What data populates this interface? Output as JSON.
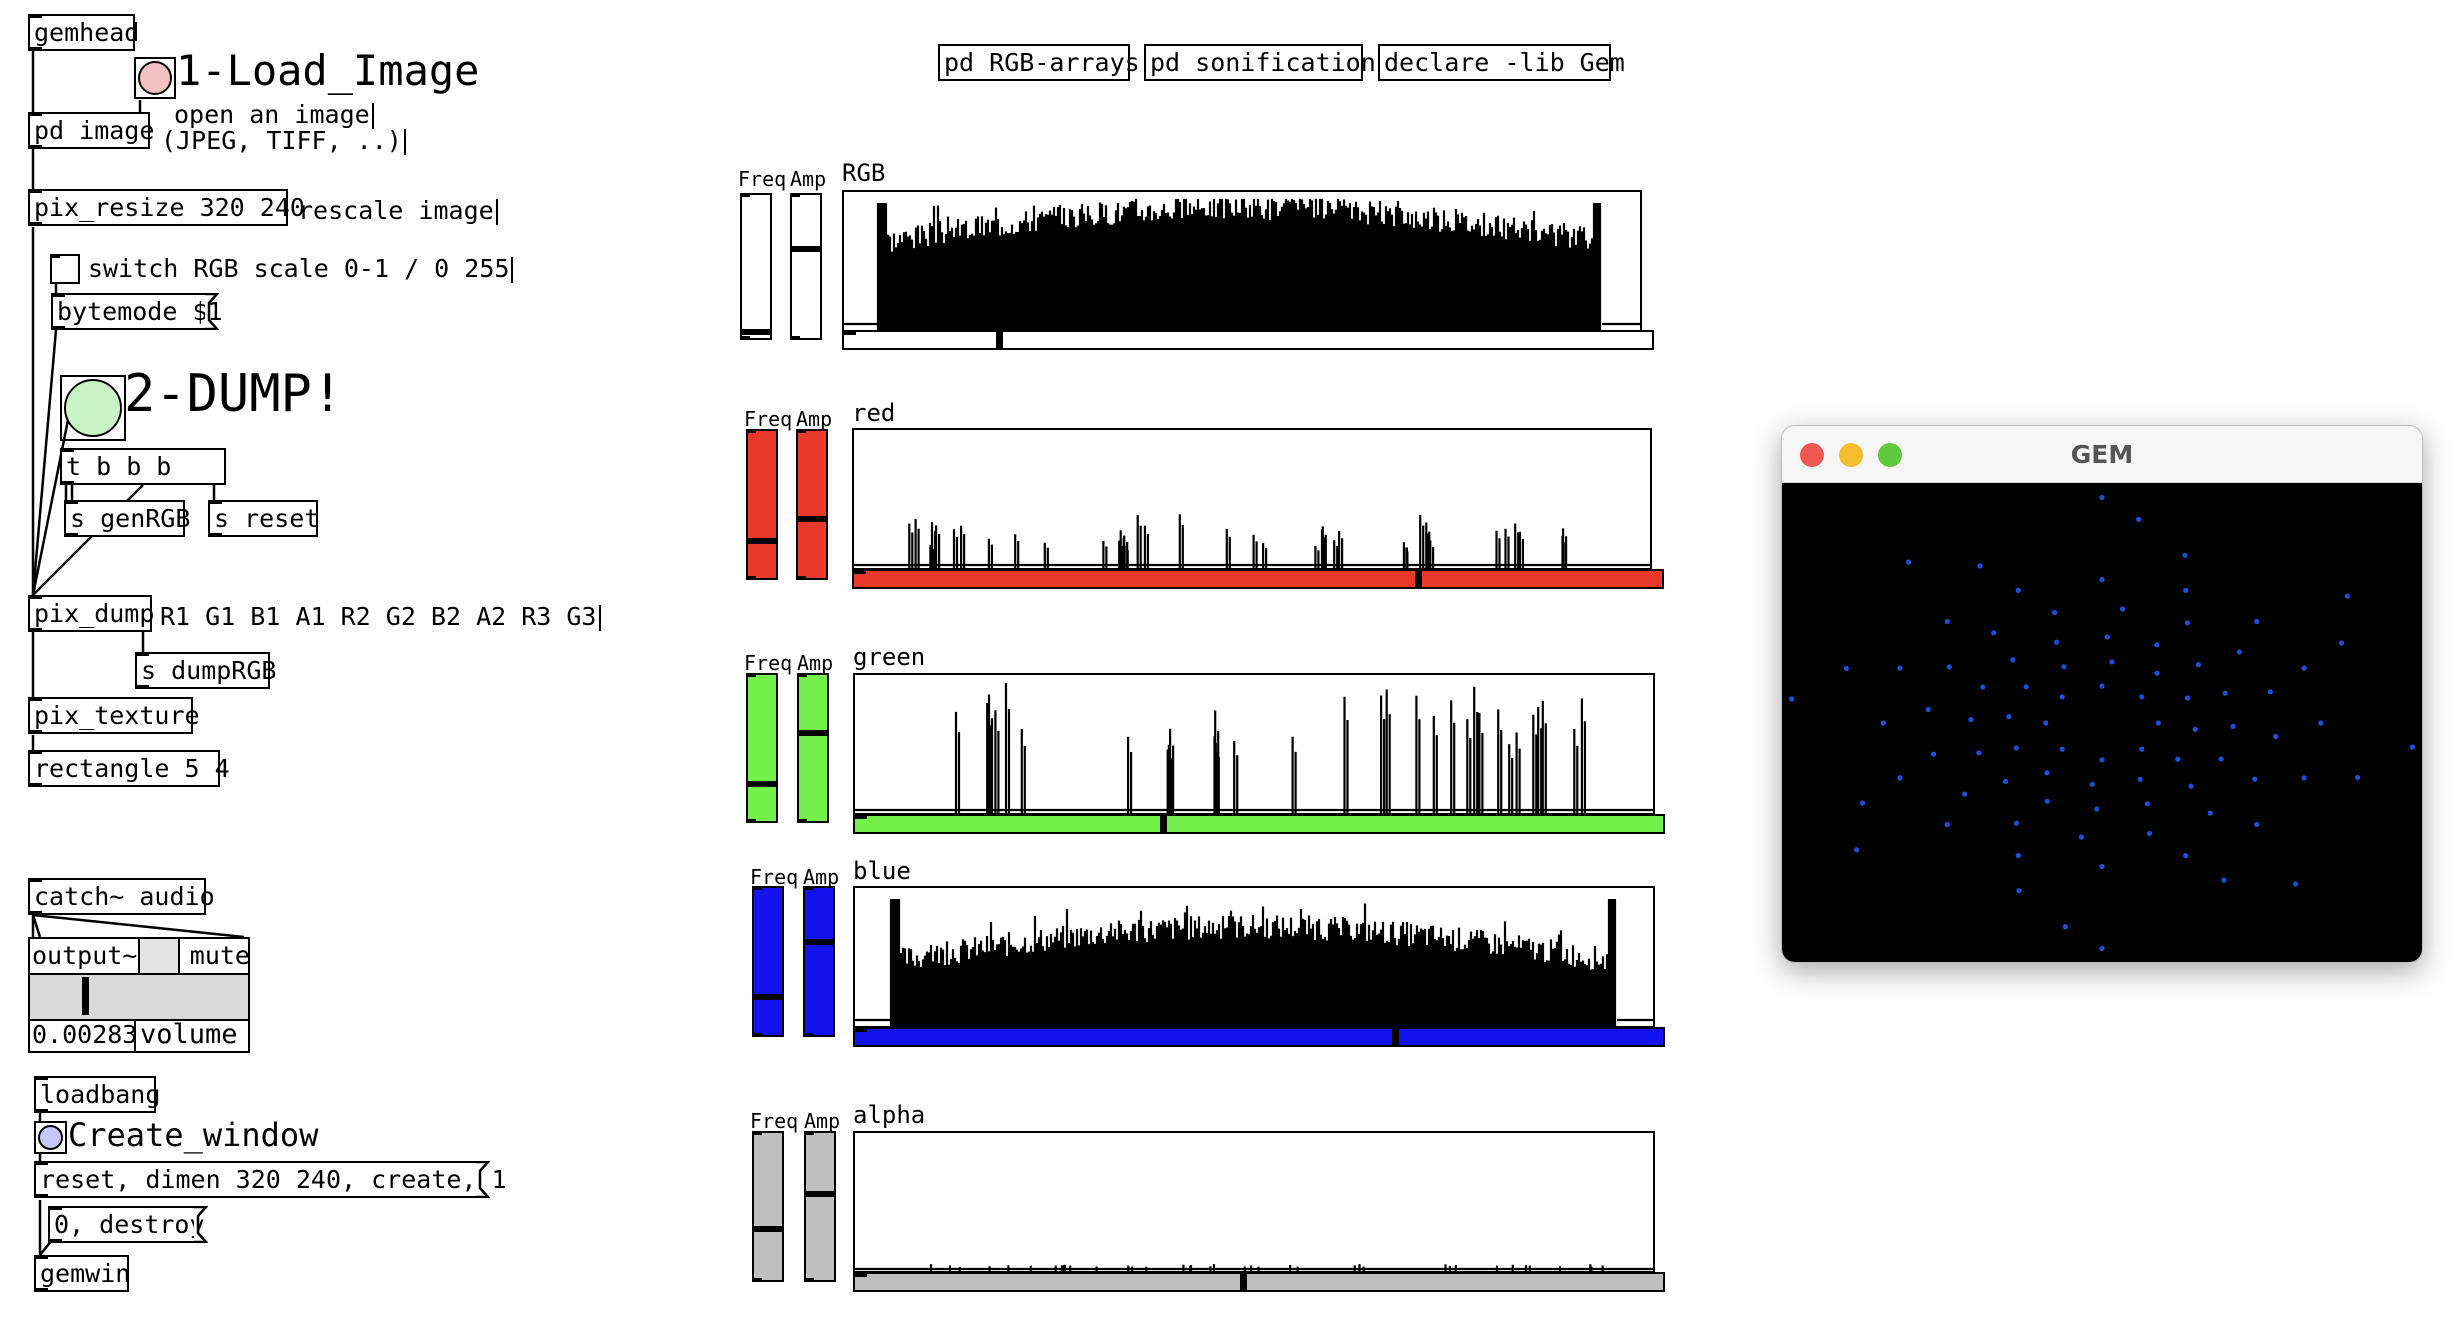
{
  "patch": {
    "objects": {
      "gemhead": "gemhead",
      "pd_image": "pd image",
      "pix_resize": "pix_resize 320 240",
      "bytemode": "bytemode $1",
      "t_b_b_b": "t b b b",
      "s_genRGB": "s genRGB",
      "s_reset": "s reset",
      "pix_dump": "pix_dump",
      "s_dumpRGB": "s dumpRGB",
      "pix_texture": "pix_texture",
      "rectangle": "rectangle 5 4",
      "catch_audio": "catch~ audio",
      "output": "output~",
      "mute": "mute",
      "volume_value": "0.00283",
      "volume": "volume",
      "loadbang": "loadbang",
      "create_msg": "reset, dimen 320 240, create, 1",
      "destroy_msg": "0, destroy",
      "gemwin": "gemwin",
      "pd_rgb_arrays": "pd RGB-arrays",
      "pd_sonification": "pd sonification",
      "declare": "declare -lib Gem"
    },
    "comments": {
      "load_image": "1-Load_Image",
      "open_image": "open an image",
      "formats": "(JPEG, TIFF, ..)",
      "rescale": "rescale image",
      "switch_scale": "switch RGB scale 0-1 / 0 255",
      "dump": "2-DUMP!",
      "outlets": "R1 G1 B1 A1 R2 G2 B2 A2 R3 G3",
      "create_window": "Create_window"
    },
    "bang_colors": {
      "load": "#f4c2c2",
      "dump": "#c8f5c3",
      "create": "#c6c6f7"
    }
  },
  "arrays": [
    {
      "name": "RGB",
      "color": "#ffffff",
      "freq_label": "Freq",
      "amp_label": "Amp",
      "freq_level": 0.02,
      "amp_level": 0.63,
      "position": 0.19
    },
    {
      "name": "red",
      "color": "#e8392a",
      "freq_label": "Freq",
      "amp_label": "Amp",
      "freq_level": 0.24,
      "amp_level": 0.4,
      "position": 0.7
    },
    {
      "name": "green",
      "color": "#74f04a",
      "freq_label": "Freq",
      "amp_label": "Amp",
      "freq_level": 0.24,
      "amp_level": 0.61,
      "position": 0.38
    },
    {
      "name": "blue",
      "color": "#1313f0",
      "freq_label": "Freq",
      "amp_label": "Amp",
      "freq_level": 0.25,
      "amp_level": 0.64,
      "position": 0.67
    },
    {
      "name": "alpha",
      "color": "#bfbfbf",
      "freq_label": "Freq",
      "amp_label": "Amp",
      "freq_level": 0.34,
      "amp_level": 0.59,
      "position": 0.48
    }
  ],
  "gem_window": {
    "title": "GEM",
    "close_color": "#ee5a52",
    "minimize_color": "#f5bd2f",
    "zoom_color": "#5fc93e",
    "point_color": "#1f4fd8"
  }
}
